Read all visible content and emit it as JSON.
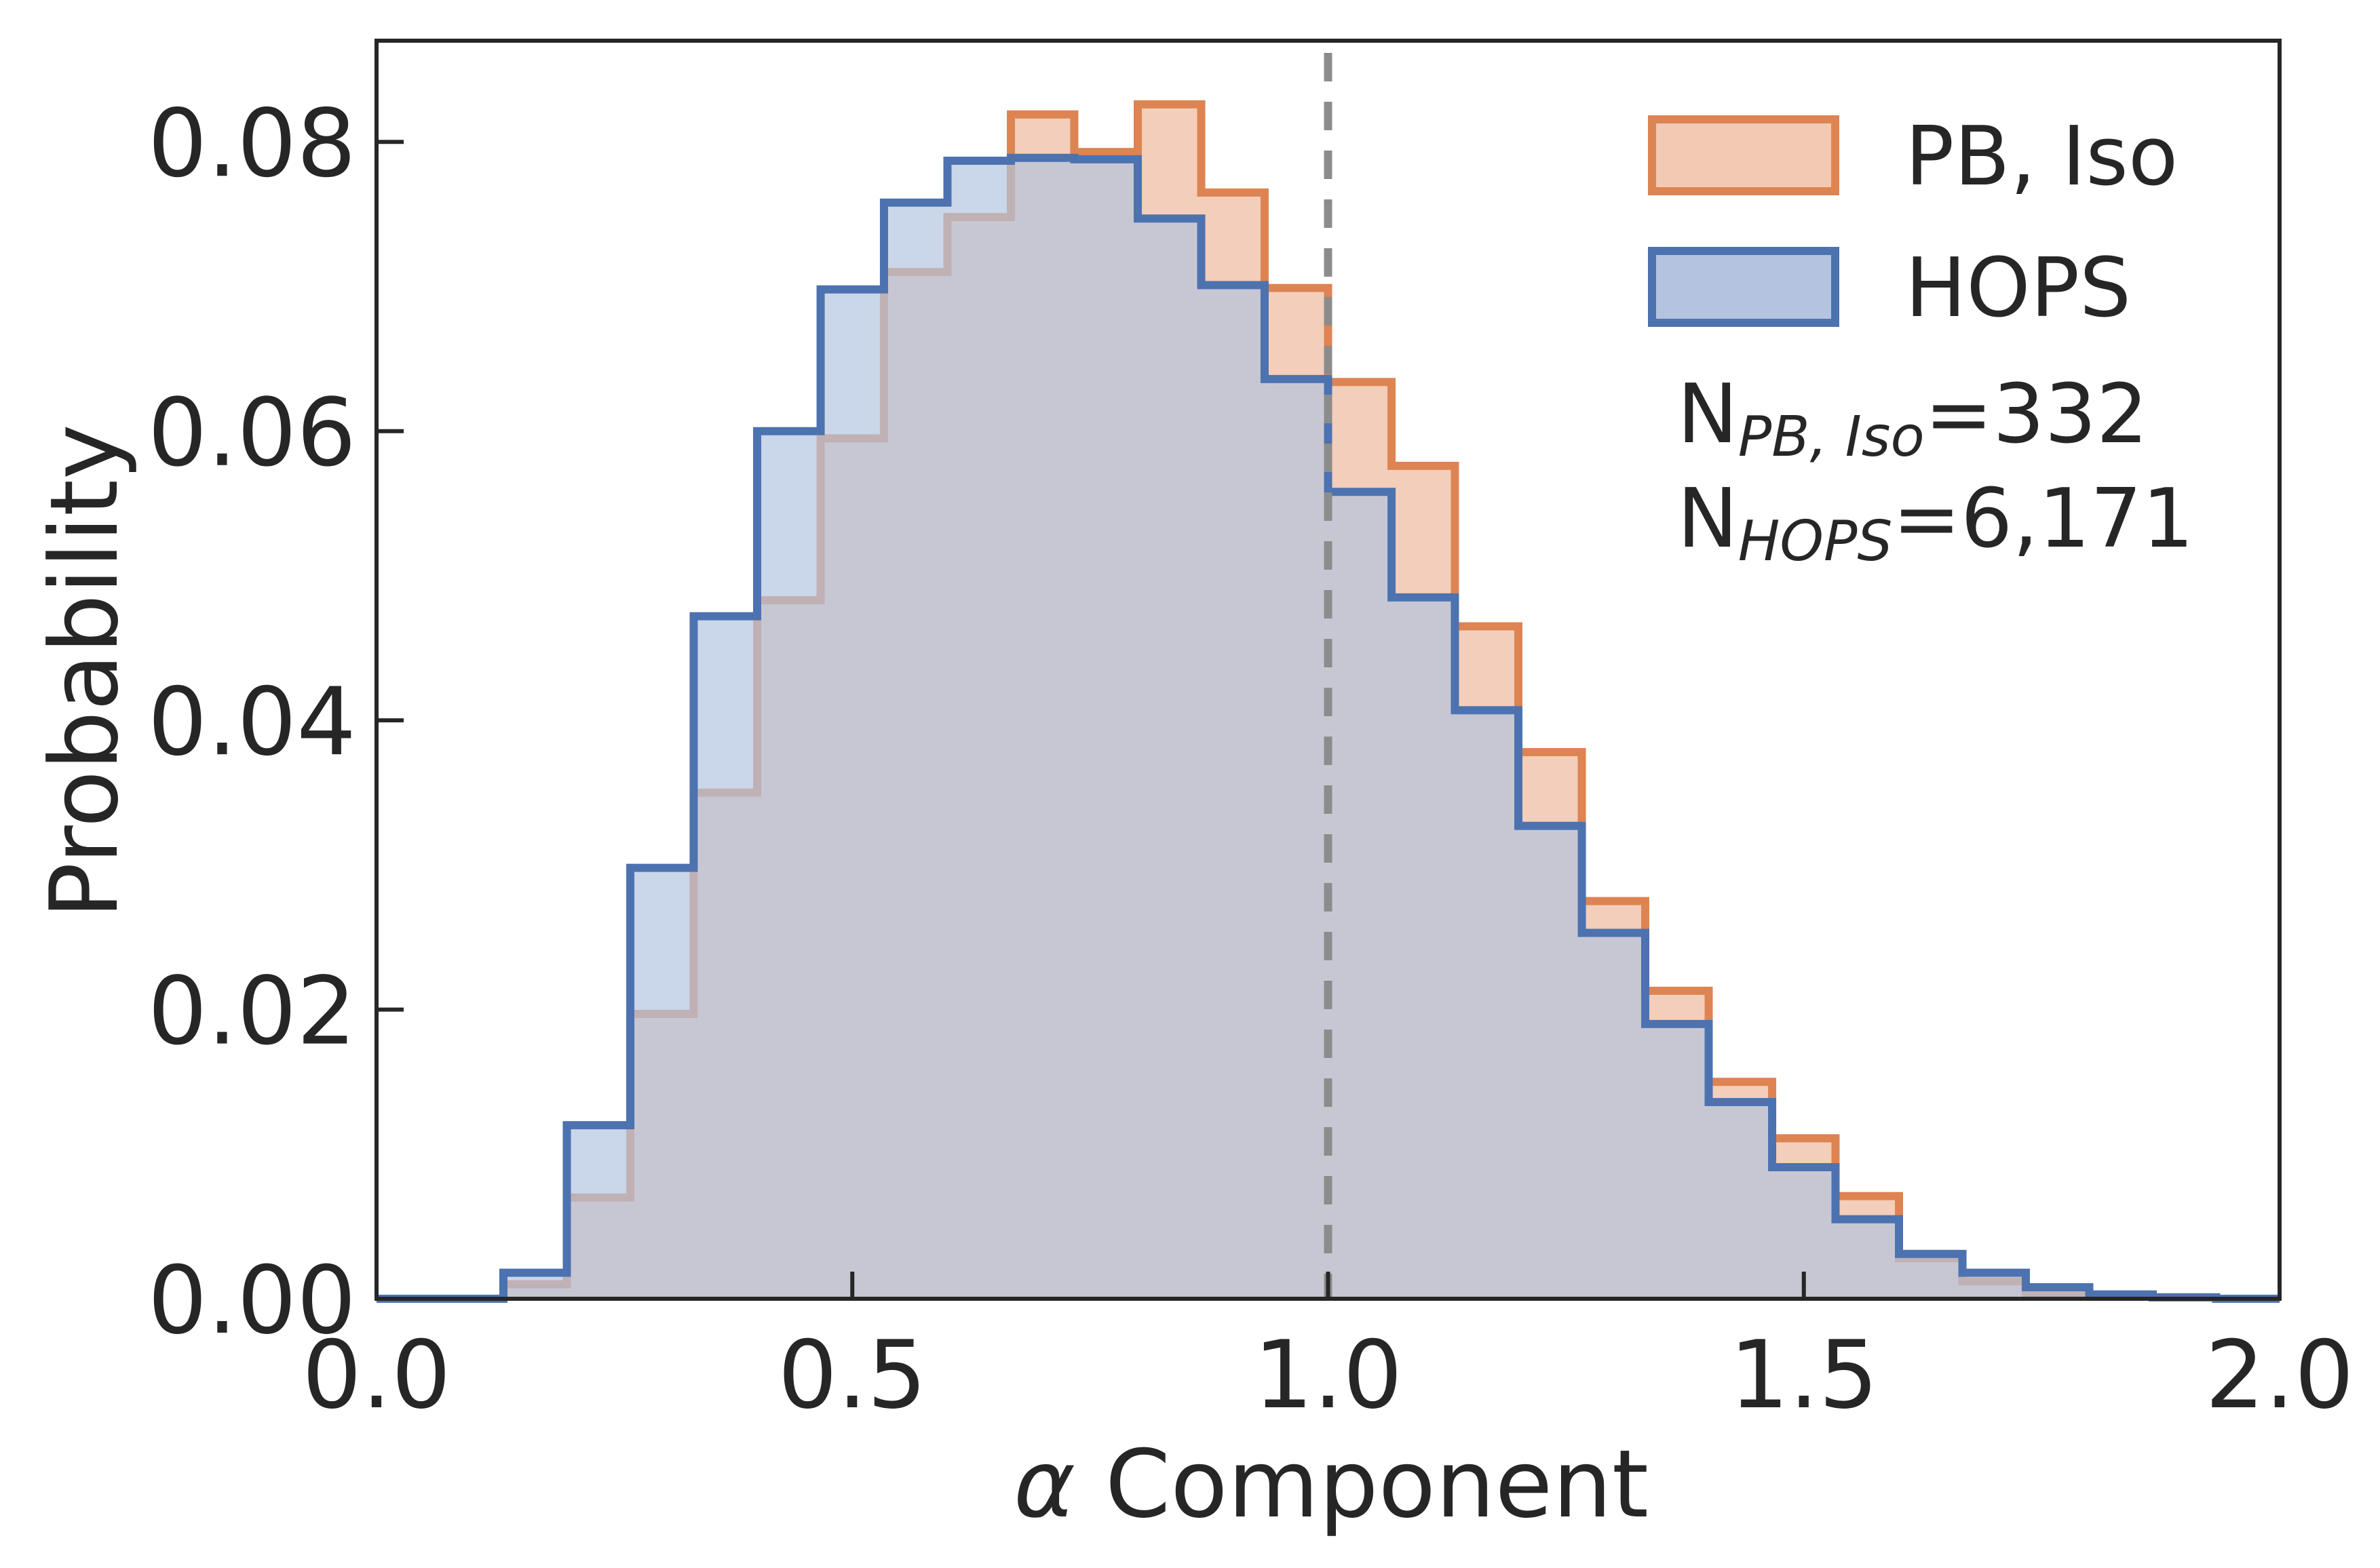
{
  "chart_data": {
    "type": "histogram",
    "xlabel_symbol": "α",
    "xlabel_text": " Component",
    "ylabel": "Probability",
    "xlim": [
      0.0,
      2.0
    ],
    "ylim": [
      0.0,
      0.087
    ],
    "x_ticks": [
      "0.0",
      "0.5",
      "1.0",
      "1.5",
      "2.0"
    ],
    "x_tick_values": [
      0.0,
      0.5,
      1.0,
      1.5,
      2.0
    ],
    "y_ticks": [
      "0.00",
      "0.02",
      "0.04",
      "0.06",
      "0.08"
    ],
    "y_tick_values": [
      0.0,
      0.02,
      0.04,
      0.06,
      0.08
    ],
    "grid": false,
    "legend_position": "top-right",
    "reference_line": {
      "x": 1.0,
      "style": "dashed",
      "color": "#8c8c8c"
    },
    "bin_edges": [
      0.0,
      0.0667,
      0.1333,
      0.2,
      0.2667,
      0.3333,
      0.4,
      0.4667,
      0.5333,
      0.6,
      0.6667,
      0.7333,
      0.8,
      0.8667,
      0.9333,
      1.0,
      1.0667,
      1.1333,
      1.2,
      1.2667,
      1.3333,
      1.4,
      1.4667,
      1.5333,
      1.6,
      1.6667,
      1.7333,
      1.8,
      1.8667,
      1.9333,
      2.0
    ],
    "series": [
      {
        "name": "PB, Iso",
        "edge_color": "#dd8452",
        "fill_color": "#f2c9b3",
        "values": [
          0.0,
          0.0,
          0.001,
          0.007,
          0.0197,
          0.035,
          0.0483,
          0.0595,
          0.071,
          0.0748,
          0.0819,
          0.0793,
          0.0826,
          0.0765,
          0.0699,
          0.0634,
          0.0576,
          0.0465,
          0.0378,
          0.0275,
          0.0213,
          0.015,
          0.0111,
          0.0071,
          0.0028,
          0.0012,
          0.0004,
          0.0002,
          0.0001,
          0.0
        ]
      },
      {
        "name": "HOPS",
        "edge_color": "#4c72b0",
        "fill_color": "#b4c4e0",
        "values": [
          0.0,
          0.0,
          0.0018,
          0.012,
          0.0298,
          0.0472,
          0.06,
          0.0698,
          0.0758,
          0.0787,
          0.0789,
          0.0788,
          0.0747,
          0.0701,
          0.0636,
          0.0558,
          0.0485,
          0.0407,
          0.0327,
          0.0253,
          0.019,
          0.0136,
          0.0091,
          0.0055,
          0.0031,
          0.0018,
          0.0008,
          0.0003,
          0.0001,
          0.0
        ]
      }
    ],
    "annotations": [
      {
        "main": "N",
        "sub": "PB, Iso",
        "value": "=332"
      },
      {
        "main": "N",
        "sub": "HOPS",
        "value": "=6,171"
      }
    ]
  }
}
